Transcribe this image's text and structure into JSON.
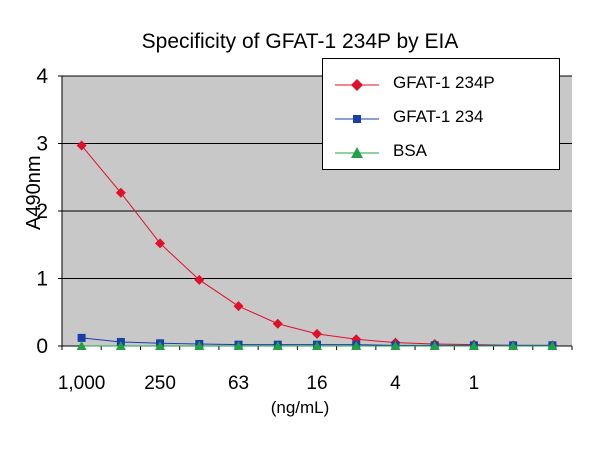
{
  "chart_data": {
    "type": "line",
    "title": "Specificity of GFAT-1 234P by EIA",
    "xlabel": "(ng/mL)",
    "ylabel": "A490nm",
    "ylim": [
      0,
      4
    ],
    "yticks": [
      "0",
      "1",
      "2",
      "3",
      "4"
    ],
    "x_tick_labels": [
      "1,000",
      "250",
      "63",
      "16",
      "4",
      "1"
    ],
    "x_points": [
      1000,
      500,
      250,
      125,
      63,
      31,
      16,
      8,
      4,
      2,
      1,
      0.5,
      0.25
    ],
    "grid": true,
    "legend_position": "top-right",
    "series": [
      {
        "name": "GFAT-1 234P",
        "color": "#e0102a",
        "marker": "diamond",
        "values": [
          2.97,
          2.27,
          1.52,
          0.98,
          0.59,
          0.33,
          0.18,
          0.1,
          0.05,
          0.03,
          0.02,
          0.01,
          0.01
        ]
      },
      {
        "name": "GFAT-1 234",
        "color": "#1a3ea8",
        "marker": "square",
        "values": [
          0.12,
          0.06,
          0.04,
          0.03,
          0.02,
          0.02,
          0.02,
          0.02,
          0.01,
          0.01,
          0.01,
          0.01,
          0.01
        ]
      },
      {
        "name": "BSA",
        "color": "#22a046",
        "marker": "triangle",
        "values": [
          0.0,
          0.0,
          0.0,
          0.0,
          0.0,
          0.0,
          0.0,
          0.0,
          0.0,
          0.0,
          0.0,
          0.0,
          0.0
        ]
      }
    ]
  }
}
